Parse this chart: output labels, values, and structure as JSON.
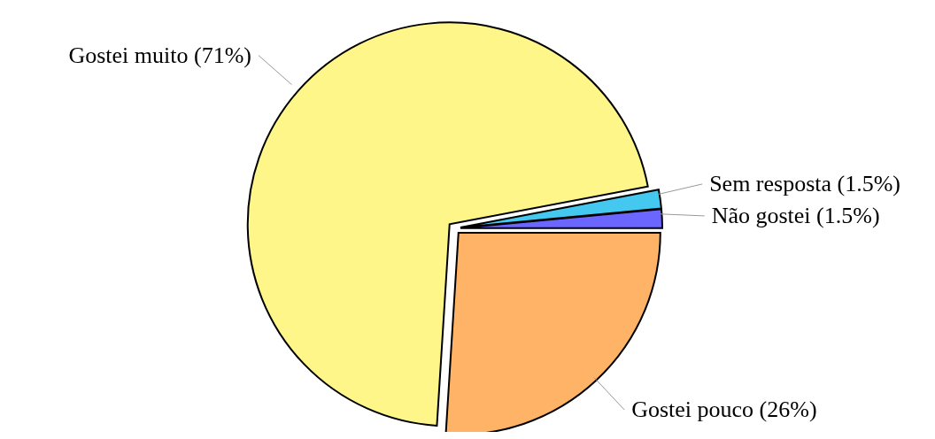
{
  "chart_data": {
    "type": "pie",
    "categories": [
      "Não gostei",
      "Sem resposta",
      "Gostei muito",
      "Gostei pouco"
    ],
    "values": [
      1.5,
      1.5,
      71,
      26
    ],
    "value_labels": [
      "(1.5%)",
      "(1.5%)",
      "(71%)",
      "(26%)"
    ],
    "colors": [
      "#6a66ff",
      "#44c8f0",
      "#fff68a",
      "#ffb366"
    ]
  }
}
